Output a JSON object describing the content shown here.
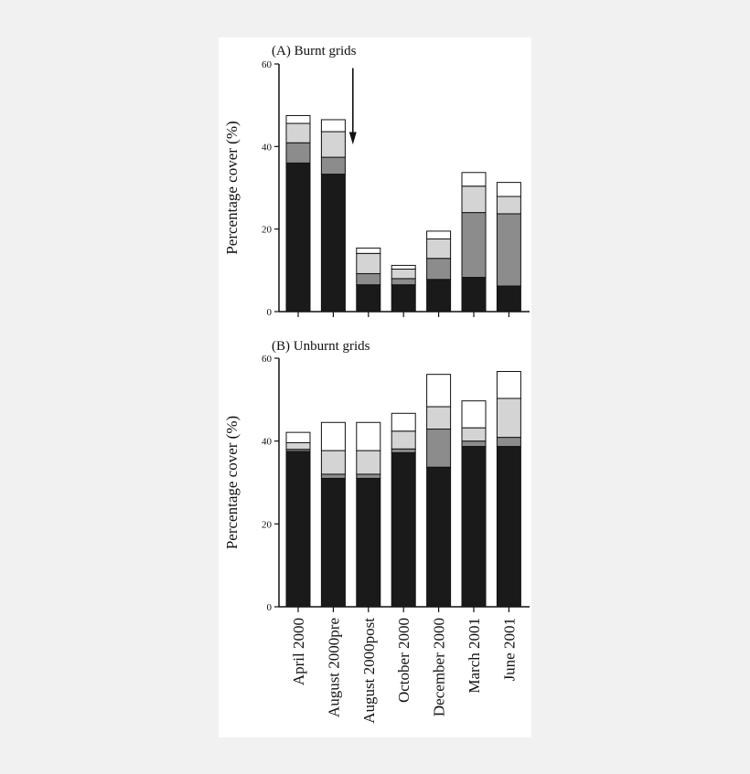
{
  "chart_data": [
    {
      "type": "bar",
      "stacked": true,
      "title": "(A) Burnt grids",
      "ylabel": "Percentage cover (%)",
      "xlabel": "",
      "ylim": [
        0,
        60
      ],
      "yticks": [
        0,
        20,
        40,
        60
      ],
      "categories": [
        "April 2000",
        "August 2000pre",
        "August 2000post",
        "October 2000",
        "December 2000",
        "March 2001",
        "June 2001"
      ],
      "series": [
        {
          "color": "#1a1a1a",
          "values": [
            36,
            33.3,
            6.5,
            6.5,
            7.8,
            8.3,
            6.2
          ]
        },
        {
          "color": "#8c8c8c",
          "values": [
            4.9,
            4.1,
            2.7,
            1.5,
            5.1,
            15.7,
            17.5
          ]
        },
        {
          "color": "#d4d4d4",
          "values": [
            4.7,
            6.2,
            4.9,
            2.3,
            4.7,
            6.4,
            4.2
          ]
        },
        {
          "color": "#ffffff",
          "values": [
            1.9,
            2.9,
            1.3,
            0.9,
            1.9,
            3.3,
            3.4
          ]
        }
      ],
      "arrow_category": "August 2000post",
      "grid": false
    },
    {
      "type": "bar",
      "stacked": true,
      "title": "(B) Unburnt grids",
      "ylabel": "Percentage cover (%)",
      "xlabel": "",
      "ylim": [
        0,
        60
      ],
      "yticks": [
        0,
        20,
        40,
        60
      ],
      "categories": [
        "April 2000",
        "August 2000pre",
        "August 2000post",
        "October 2000",
        "December 2000",
        "March 2001",
        "June 2001"
      ],
      "series": [
        {
          "color": "#1a1a1a",
          "values": [
            37.5,
            31,
            31,
            37.2,
            33.7,
            38.7,
            38.7
          ]
        },
        {
          "color": "#8c8c8c",
          "values": [
            0.5,
            1,
            1,
            0.9,
            9.2,
            1.3,
            2.2
          ]
        },
        {
          "color": "#d4d4d4",
          "values": [
            1.6,
            5.7,
            5.7,
            4.3,
            5.4,
            3.2,
            9.4
          ]
        },
        {
          "color": "#ffffff",
          "values": [
            2.5,
            6.8,
            6.8,
            4.3,
            7.8,
            6.5,
            6.5
          ]
        }
      ],
      "grid": false
    }
  ]
}
